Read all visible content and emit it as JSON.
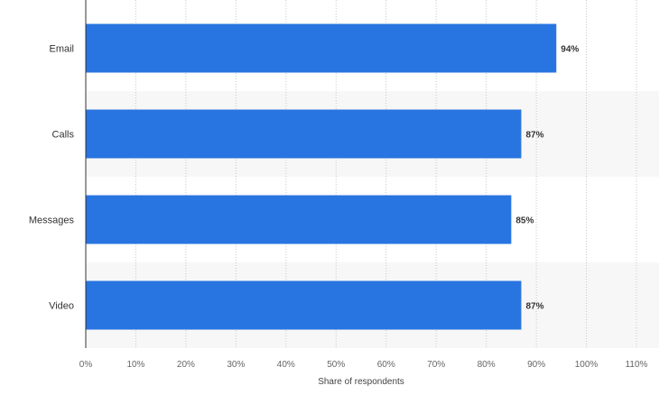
{
  "chart_data": {
    "type": "bar",
    "orientation": "horizontal",
    "categories": [
      "Email",
      "Calls",
      "Messages",
      "Video"
    ],
    "values": [
      94,
      87,
      85,
      87
    ],
    "value_labels": [
      "94%",
      "87%",
      "85%",
      "87%"
    ],
    "xlabel": "Share of respondents",
    "ylabel": "",
    "xlim": [
      0,
      110
    ],
    "x_ticks": [
      0,
      10,
      20,
      30,
      40,
      50,
      60,
      70,
      80,
      90,
      100,
      110
    ],
    "x_tick_labels": [
      "0%",
      "10%",
      "20%",
      "30%",
      "40%",
      "50%",
      "60%",
      "70%",
      "80%",
      "90%",
      "100%",
      "110%"
    ],
    "grid": "vertical dotted",
    "legend": "none",
    "colors": {
      "bar": "#2874e0",
      "band": "#f7f7f7",
      "grid": "#c8c8c8",
      "axis": "#333333"
    }
  }
}
